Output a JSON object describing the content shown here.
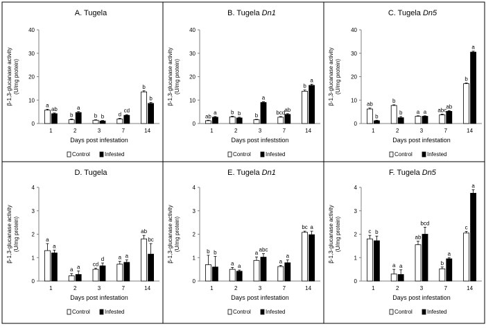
{
  "legend": {
    "control": "Control",
    "infested": "Infested"
  },
  "colors": {
    "control": "#ffffff",
    "infested": "#000000",
    "axis": "#7f7f7f",
    "frame": "#000000"
  },
  "chart_data": [
    {
      "type": "bar",
      "title": "A. Tugela",
      "title_italic": "",
      "ylabel_line1": "β-1,3-glucanase activity",
      "ylabel_line2": "(U/mg protein)",
      "xlabel": "Days post infestation",
      "ylim": [
        0,
        40
      ],
      "yticks": [
        0,
        10,
        20,
        30,
        40
      ],
      "categories": [
        "1",
        "2",
        "3",
        "7",
        "14"
      ],
      "legend_position": "bottom",
      "series": [
        {
          "name": "Control",
          "values": [
            5.7,
            1.6,
            1.4,
            1.9,
            13.5
          ],
          "errors": [
            0.4,
            0.3,
            0.2,
            0.3,
            0.5
          ],
          "labels": [
            "a",
            "b",
            "b",
            "d",
            "b"
          ]
        },
        {
          "name": "Infested",
          "values": [
            4.2,
            4.7,
            1.1,
            3.5,
            8.6
          ],
          "errors": [
            0.3,
            0.4,
            0.2,
            0.3,
            0.4
          ],
          "labels": [
            "ab",
            "a",
            "b",
            "cd",
            "b"
          ]
        }
      ]
    },
    {
      "type": "bar",
      "title": "B. Tugela ",
      "title_italic": "Dn1",
      "ylabel_line1": "β-1,3-glucanase activity",
      "ylabel_line2": "(U/mg protein)",
      "xlabel": "Days post infeststion",
      "ylim": [
        0,
        40
      ],
      "yticks": [
        0,
        10,
        20,
        30,
        40
      ],
      "categories": [
        "1",
        "2",
        "3",
        "7",
        "14"
      ],
      "legend_position": "bottom",
      "series": [
        {
          "name": "Control",
          "values": [
            1.2,
            2.8,
            1.6,
            2.7,
            13.8
          ],
          "errors": [
            0.2,
            0.3,
            0.2,
            0.3,
            0.5
          ],
          "labels": [
            "ab",
            "b",
            "b",
            "bcd",
            "b"
          ]
        },
        {
          "name": "Infested",
          "values": [
            2.7,
            2.4,
            9.0,
            3.9,
            16.3
          ],
          "errors": [
            0.3,
            0.3,
            0.3,
            0.3,
            0.5
          ],
          "labels": [
            "a",
            "b",
            "a",
            "ab",
            "a"
          ]
        }
      ]
    },
    {
      "type": "bar",
      "title": "C. Tugela ",
      "title_italic": "Dn5",
      "ylabel_line1": "β-1,3-glucanase activity",
      "ylabel_line2": "(U/mg protein)",
      "xlabel": "Days post infestation",
      "ylim": [
        0,
        40
      ],
      "yticks": [
        0,
        10,
        20,
        30,
        40
      ],
      "categories": [
        "1",
        "2",
        "3",
        "7",
        "14"
      ],
      "legend_position": "bottom",
      "series": [
        {
          "name": "Control",
          "values": [
            6.2,
            7.7,
            3.1,
            3.7,
            17.0
          ],
          "errors": [
            0.4,
            0.3,
            0.2,
            0.3,
            0.3
          ],
          "labels": [
            "ab",
            "b",
            "a",
            "abc",
            "b"
          ]
        },
        {
          "name": "Infested",
          "values": [
            1.2,
            2.5,
            3.1,
            5.2,
            30.5
          ],
          "errors": [
            0.2,
            0.5,
            0.2,
            0.3,
            0.4
          ],
          "labels": [
            "b",
            "b",
            "a",
            "ab",
            "a"
          ]
        }
      ]
    },
    {
      "type": "bar",
      "title": "D. Tugela",
      "title_italic": "",
      "ylabel_line1": "β-1,3-glucanase activity",
      "ylabel_line2": "(U/mg protein)",
      "xlabel": "Days post infestation",
      "ylim": [
        0,
        4
      ],
      "yticks": [
        0,
        1,
        2,
        3,
        4
      ],
      "categories": [
        "1",
        "2",
        "3",
        "7",
        "14"
      ],
      "legend_position": "bottom",
      "series": [
        {
          "name": "Control",
          "values": [
            1.3,
            0.22,
            0.5,
            0.72,
            1.8
          ],
          "errors": [
            0.3,
            0.1,
            0.05,
            0.12,
            0.15
          ],
          "labels": [
            "a",
            "a",
            "cd",
            "a",
            "ab"
          ]
        },
        {
          "name": "Infested",
          "values": [
            1.2,
            0.28,
            0.65,
            0.8,
            1.15
          ],
          "errors": [
            0.12,
            0.15,
            0.12,
            0.1,
            0.45
          ],
          "labels": [
            "a",
            "a",
            "d",
            "a",
            "bc"
          ]
        }
      ]
    },
    {
      "type": "bar",
      "title": "E. Tugela ",
      "title_italic": "Dn1",
      "ylabel_line1": "β-1,3-glucanase activity",
      "ylabel_line2": "(U/mg protein)",
      "xlabel": "Days post infestation",
      "ylim": [
        0,
        4
      ],
      "yticks": [
        0,
        1,
        2,
        3,
        4
      ],
      "categories": [
        "1",
        "2",
        "3",
        "7",
        "14"
      ],
      "legend_position": "bottom",
      "series": [
        {
          "name": "Control",
          "values": [
            0.7,
            0.5,
            0.88,
            0.62,
            2.08
          ],
          "errors": [
            0.4,
            0.08,
            0.15,
            0.05,
            0.05
          ],
          "labels": [
            "b",
            "a",
            "a",
            "a",
            "bc"
          ]
        },
        {
          "name": "Infested",
          "values": [
            0.6,
            0.42,
            1.02,
            0.78,
            1.98
          ],
          "errors": [
            0.45,
            0.05,
            0.15,
            0.12,
            0.15
          ],
          "labels": [
            "b",
            "a",
            "abc",
            "a",
            "a"
          ]
        }
      ]
    },
    {
      "type": "bar",
      "title": "F. Tugela ",
      "title_italic": "Dn5",
      "ylabel_line1": "β-1,3-glucanase activity",
      "ylabel_line2": "(U/mg protein)",
      "xlabel": "Days post infestation",
      "ylim": [
        0,
        4
      ],
      "yticks": [
        0,
        1,
        2,
        3,
        4
      ],
      "categories": [
        "1",
        "2",
        "3",
        "7",
        "14"
      ],
      "legend_position": "bottom",
      "series": [
        {
          "name": "Control",
          "values": [
            1.8,
            0.3,
            1.55,
            0.52,
            2.05
          ],
          "errors": [
            0.15,
            0.2,
            0.15,
            0.08,
            0.07
          ],
          "labels": [
            "c",
            "a",
            "ab",
            "b",
            "c"
          ]
        },
        {
          "name": "Infested",
          "values": [
            1.72,
            0.28,
            2.0,
            0.95,
            3.75
          ],
          "errors": [
            0.2,
            0.2,
            0.3,
            0.05,
            0.15
          ],
          "labels": [
            "b",
            "a",
            "bcd",
            "a",
            "a"
          ]
        }
      ]
    }
  ]
}
